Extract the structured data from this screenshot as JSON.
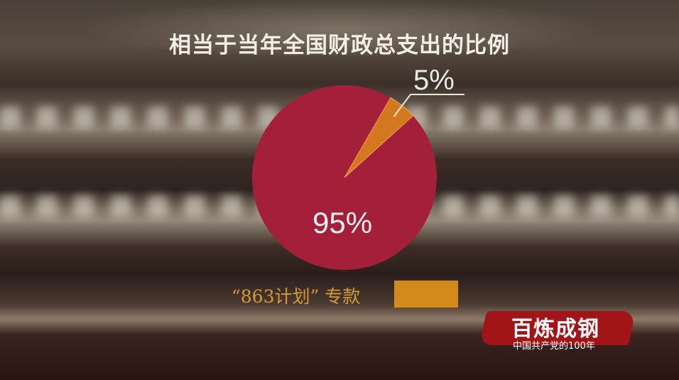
{
  "chart_data": {
    "type": "pie",
    "title": "相当于当年全国财政总支出的比例",
    "slices": [
      {
        "label": "“863计划”专款",
        "value": 5,
        "value_label": "5%",
        "color": "#d4781f"
      },
      {
        "value": 95,
        "value_label": "95%",
        "color": "#a41f3a"
      }
    ],
    "legend": [
      {
        "label": "“863计划” 专款",
        "color": "#d48a1a"
      }
    ],
    "legend_placement": "bottom"
  },
  "logo": {
    "main": "百炼成钢",
    "sub": "中国共产党的100年"
  }
}
